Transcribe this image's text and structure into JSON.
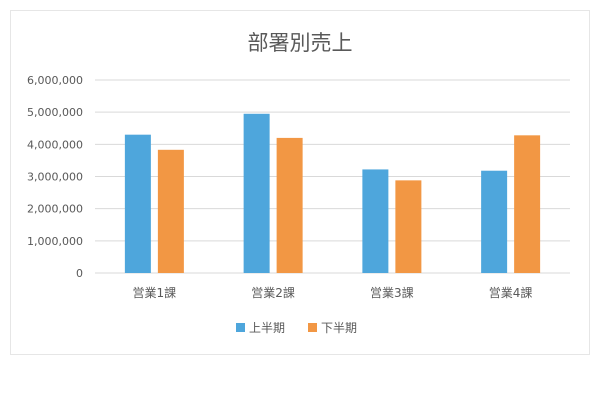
{
  "chart_data": {
    "type": "bar",
    "title": "部署別売上",
    "categories": [
      "営業1課",
      "営業2課",
      "営業3課",
      "営業4課"
    ],
    "series": [
      {
        "name": "上半期",
        "color": "#4EA6DC",
        "values": [
          4300000,
          4950000,
          3220000,
          3180000
        ]
      },
      {
        "name": "下半期",
        "color": "#F29744",
        "values": [
          3830000,
          4200000,
          2880000,
          4280000
        ]
      }
    ],
    "yticks": [
      "0",
      "1,000,000",
      "2,000,000",
      "3,000,000",
      "4,000,000",
      "5,000,000",
      "6,000,000"
    ],
    "ylim": [
      0,
      6000000
    ],
    "grid": true,
    "legend_position": "bottom"
  }
}
